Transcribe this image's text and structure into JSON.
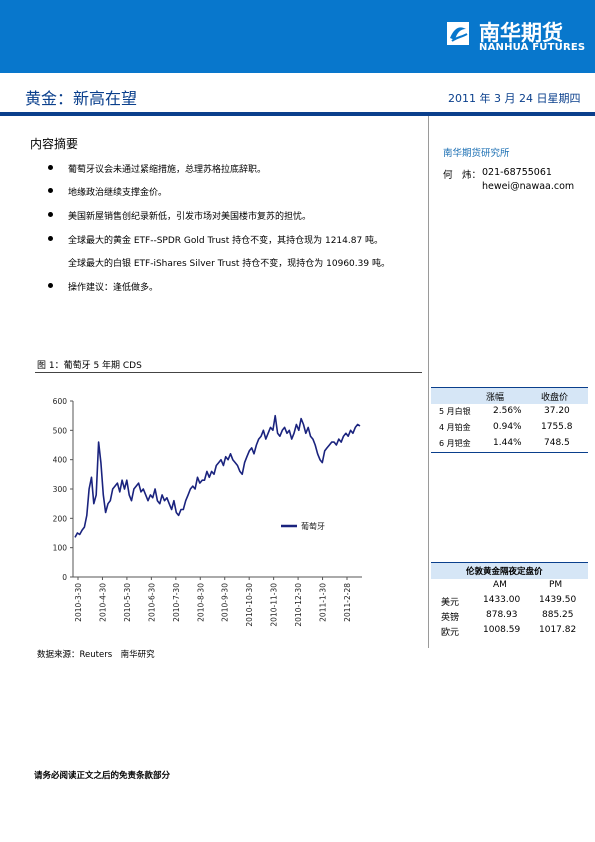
{
  "brand": {
    "name_cn": "南华期货",
    "name_en": "NANHUA FUTURES",
    "color": "#0877cc"
  },
  "header": {
    "title": "黄金：新高在望",
    "date": "2011 年 3 月 24 日星期四"
  },
  "summary": {
    "heading": "内容摘要",
    "items": [
      "葡萄牙议会未通过紧缩措施，总理苏格拉底辞职。",
      "地缘政治继续支撑金价。",
      "美国新屋销售创纪录新低，引发市场对美国楼市复苏的担忧。",
      "全球最大的黄金 ETF--SPDR Gold Trust 持仓不变，其持仓现为 1214.87 吨。",
      "全球最大的白银 ETF-iShares Silver Trust 持仓不变，现持仓为 10960.39 吨。",
      "操作建议：逢低做多。"
    ]
  },
  "sidebar": {
    "dept": "南华期货研究所",
    "analyst_label": "何　炜：",
    "phone": "021-68755061",
    "email": "hewei@nawaa.com"
  },
  "figure": {
    "caption": "图 1：葡萄牙 5 年期 CDS",
    "source": "数据来源：Reuters　南华研究"
  },
  "chart_data": {
    "type": "line",
    "title": "",
    "xlabel": "",
    "ylabel": "",
    "ylim": [
      0,
      600
    ],
    "yticks": [
      0,
      100,
      200,
      300,
      400,
      500,
      600
    ],
    "x_ticks": [
      "2010-3-30",
      "2010-4-30",
      "2010-5-30",
      "2010-6-30",
      "2010-7-30",
      "2010-8-30",
      "2010-9-30",
      "2010-10-30",
      "2010-11-30",
      "2010-12-30",
      "2011-1-30",
      "2011-2-28"
    ],
    "legend_position": "right-middle",
    "grid": false,
    "series": [
      {
        "name": "葡萄牙",
        "color": "#1a237e",
        "values": [
          135,
          150,
          145,
          160,
          170,
          210,
          300,
          340,
          250,
          280,
          460,
          390,
          280,
          220,
          250,
          260,
          300,
          310,
          320,
          290,
          330,
          300,
          330,
          280,
          260,
          300,
          310,
          320,
          290,
          300,
          280,
          260,
          280,
          270,
          300,
          260,
          250,
          280,
          260,
          270,
          250,
          230,
          260,
          220,
          210,
          230,
          230,
          260,
          280,
          300,
          310,
          300,
          340,
          320,
          330,
          330,
          360,
          340,
          360,
          350,
          380,
          390,
          400,
          380,
          410,
          400,
          420,
          400,
          390,
          380,
          360,
          350,
          390,
          410,
          430,
          440,
          420,
          450,
          470,
          480,
          500,
          470,
          490,
          510,
          500,
          550,
          490,
          480,
          500,
          510,
          490,
          500,
          470,
          490,
          520,
          500,
          540,
          520,
          490,
          510,
          480,
          470,
          450,
          420,
          400,
          390,
          430,
          440,
          450,
          460,
          460,
          450,
          470,
          460,
          480,
          490,
          480,
          500,
          490,
          510,
          520,
          515
        ]
      }
    ]
  },
  "metals_table": {
    "headers": [
      "",
      "涨幅",
      "收盘价"
    ],
    "rows": [
      [
        "5 月白银",
        "2.56%",
        "37.20"
      ],
      [
        "4 月铂金",
        "0.94%",
        "1755.8"
      ],
      [
        "6 月钯金",
        "1.44%",
        "748.5"
      ]
    ]
  },
  "london_fix": {
    "title": "伦敦黄金隔夜定盘价",
    "headers": [
      "",
      "AM",
      "PM"
    ],
    "rows": [
      [
        "美元",
        "1433.00",
        "1439.50"
      ],
      [
        "英镑",
        "878.93",
        "885.25"
      ],
      [
        "欧元",
        "1008.59",
        "1017.82"
      ]
    ]
  },
  "footer": {
    "disclaimer": "请务必阅读正文之后的免责条款部分"
  }
}
